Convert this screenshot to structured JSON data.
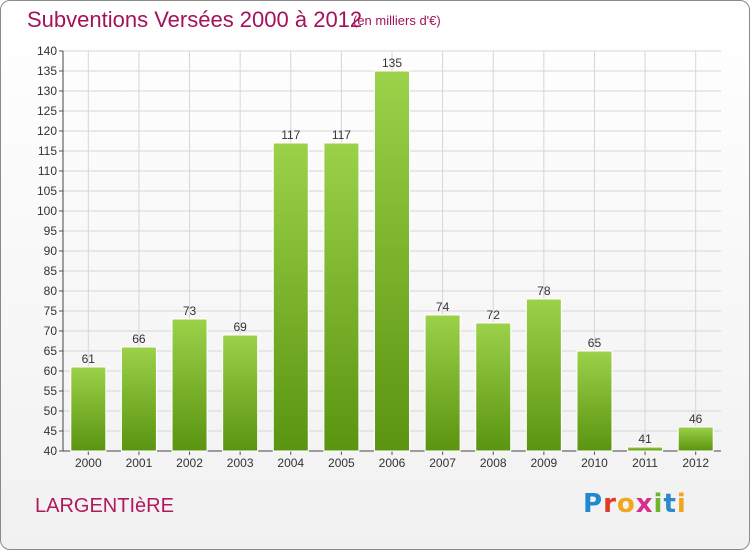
{
  "header": {
    "title": "Subventions Versées 2000 à 2012",
    "subtitle": "(en milliers d'€)"
  },
  "footer": {
    "commune": "LARGENTIèRE",
    "logo_letters": [
      "P",
      "r",
      "o",
      "x",
      "i",
      "t",
      "i"
    ]
  },
  "colors": {
    "bar_top": "#9cd14a",
    "bar_bottom": "#5a9410",
    "grid": "#d6d6d6",
    "title": "#a3125a"
  },
  "chart_data": {
    "type": "bar",
    "title": "Subventions Versées 2000 à 2012",
    "subtitle": "(en milliers d'€)",
    "categories": [
      "2000",
      "2001",
      "2002",
      "2003",
      "2004",
      "2005",
      "2006",
      "2007",
      "2008",
      "2009",
      "2010",
      "2011",
      "2012"
    ],
    "values": [
      61,
      66,
      73,
      69,
      117,
      117,
      135,
      74,
      72,
      78,
      65,
      41,
      46
    ],
    "ylim": [
      40,
      140
    ],
    "yticks": [
      40,
      45,
      50,
      55,
      60,
      65,
      70,
      75,
      80,
      85,
      90,
      95,
      100,
      105,
      110,
      115,
      120,
      125,
      130,
      135,
      140
    ],
    "grid": true,
    "data_labels": true
  }
}
